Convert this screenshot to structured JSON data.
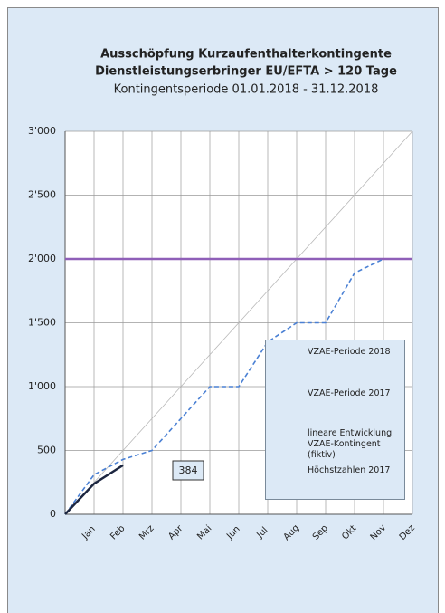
{
  "chart_data": {
    "type": "line",
    "title": [
      "Ausschöpfung Kurzaufenthalterkontingente",
      "Dienstleistungserbringer EU/EFTA > 120 Tage"
    ],
    "subtitle": "Kontingentsperiode 01.01.2018 - 31.12.2018",
    "categories": [
      null,
      "Jan",
      "Feb",
      "Mrz",
      "Apr",
      "Mai",
      "Jun",
      "Jul",
      "Aug",
      "Sep",
      "Okt",
      "Nov",
      "Dez"
    ],
    "series": [
      {
        "name": "VZAE-Periode 2018",
        "color": "#1c2640",
        "dash": false,
        "width": 2.5,
        "values": [
          0,
          240,
          384,
          null,
          null,
          null,
          null,
          null,
          null,
          null,
          null,
          null,
          null
        ]
      },
      {
        "name": "VZAE-Periode 2017",
        "color": "#4a80d4",
        "dash": true,
        "width": 1.6,
        "values": [
          0,
          310,
          430,
          500,
          750,
          1000,
          1000,
          1350,
          1500,
          1500,
          1890,
          2000,
          null
        ]
      },
      {
        "name": "lineare Entwicklung VZAE-Kontingent (fiktiv)",
        "color": "#b8b8b8",
        "dash": false,
        "width": 0.8,
        "values": [
          0,
          250,
          500,
          750,
          1000,
          1250,
          1500,
          1750,
          2000,
          2250,
          2500,
          2750,
          3000
        ]
      },
      {
        "name": "Höchstzahlen 2017",
        "color": "#8f5fb8",
        "dash": false,
        "width": 2.5,
        "values": [
          2000,
          2000,
          2000,
          2000,
          2000,
          2000,
          2000,
          2000,
          2000,
          2000,
          2000,
          2000,
          2000
        ]
      }
    ],
    "ylim": [
      0,
      3000
    ],
    "yticks": [
      0,
      500,
      {
        "value": 1000,
        "label": "1'000"
      },
      {
        "value": 1500,
        "label": "1'500"
      },
      {
        "value": 2000,
        "label": "2'000"
      },
      {
        "value": 2500,
        "label": "2'500"
      },
      {
        "value": 3000,
        "label": "3'000"
      }
    ],
    "grid": true
  }
}
